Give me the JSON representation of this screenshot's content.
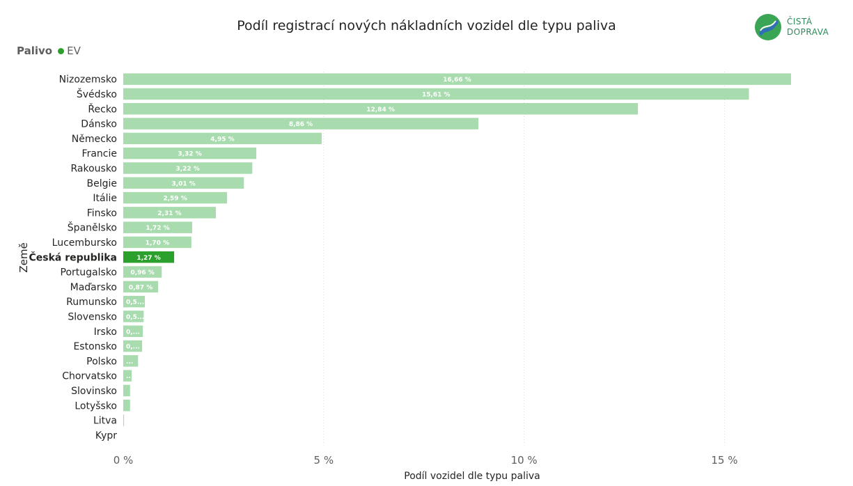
{
  "chart_data": {
    "type": "bar",
    "orientation": "horizontal",
    "title": "Podíl registrací nových nákladních vozidel dle typu paliva",
    "legend": {
      "title": "Palivo",
      "entries": [
        "EV"
      ]
    },
    "xlabel": "Podíl vozidel dle typu paliva",
    "ylabel": "Země",
    "xlim": [
      0,
      16.66
    ],
    "xticks": [
      0,
      5,
      10,
      15
    ],
    "xtick_labels": [
      "0 %",
      "5 %",
      "10 %",
      "15 %"
    ],
    "grid": true,
    "highlight": "Česká republika",
    "categories": [
      "Nizozemsko",
      "Švédsko",
      "Řecko",
      "Dánsko",
      "Německo",
      "Francie",
      "Rakousko",
      "Belgie",
      "Itálie",
      "Finsko",
      "Španělsko",
      "Lucembursko",
      "Česká republika",
      "Portugalsko",
      "Maďarsko",
      "Rumunsko",
      "Slovensko",
      "Irsko",
      "Estonsko",
      "Polsko",
      "Chorvatsko",
      "Slovinsko",
      "Lotyšsko",
      "Litva",
      "Kypr"
    ],
    "values": [
      16.66,
      15.61,
      12.84,
      8.86,
      4.95,
      3.32,
      3.22,
      3.01,
      2.59,
      2.31,
      1.72,
      1.7,
      1.27,
      0.96,
      0.87,
      0.54,
      0.51,
      0.49,
      0.47,
      0.37,
      0.21,
      0.17,
      0.17,
      0.02,
      0.0
    ],
    "data_labels": [
      "16,66 %",
      "15,61 %",
      "12,84 %",
      "8,86 %",
      "4,95 %",
      "3,32 %",
      "3,22 %",
      "3,01 %",
      "2,59 %",
      "2,31 %",
      "1,72 %",
      "1,70 %",
      "1,27 %",
      "0,96 %",
      "0,87 %",
      "0,5...",
      "0,5...",
      "0,...",
      "0,...",
      "...",
      "...",
      "",
      "",
      "",
      ""
    ],
    "colors": {
      "bar": "#a8dcae",
      "highlight": "#2ca02c",
      "grid": "#d9d9d9",
      "label_text": "#ffffff"
    }
  },
  "logo": {
    "line1": "ČISTÁ",
    "line2": "DOPRAVA",
    "colors": {
      "green": "#3aa655",
      "blue": "#2f6fb5"
    }
  }
}
